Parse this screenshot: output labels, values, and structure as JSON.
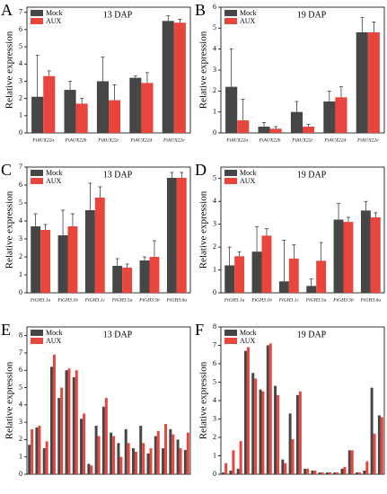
{
  "chart_data": [
    {
      "type": "bar",
      "label": "A",
      "title": "13 DAP",
      "y_label": "Relative expression",
      "categories": [
        "FtAUX22a",
        "FtAUX22b",
        "FtAUX22c",
        "FtAUX22d",
        "FtAUX22e"
      ],
      "series": [
        {
          "name": "Mock",
          "color": "#464646",
          "values": [
            2.1,
            2.5,
            3.0,
            3.2,
            6.5
          ],
          "errors": [
            2.4,
            0.5,
            1.4,
            0.1,
            0.3
          ]
        },
        {
          "name": "AUX",
          "color": "#e8453c",
          "values": [
            3.3,
            1.7,
            1.9,
            2.9,
            6.4
          ],
          "errors": [
            0.3,
            0.3,
            0.9,
            0.6,
            0.2
          ]
        }
      ],
      "ylim": [
        0,
        7.3
      ],
      "yticks": [
        0,
        1,
        2,
        3,
        4,
        5,
        6,
        7
      ]
    },
    {
      "type": "bar",
      "label": "B",
      "title": "19 DAP",
      "y_label": "Relative expression",
      "categories": [
        "FtAUX22a",
        "FtAUX22b",
        "FtAUX22c",
        "FtAUX22d",
        "FtAUX22e"
      ],
      "series": [
        {
          "name": "Mock",
          "color": "#464646",
          "values": [
            2.2,
            0.3,
            1.0,
            1.5,
            4.8
          ],
          "errors": [
            1.8,
            0.2,
            0.5,
            0.5,
            0.7
          ]
        },
        {
          "name": "AUX",
          "color": "#e8453c",
          "values": [
            0.6,
            0.2,
            0.3,
            1.7,
            4.8
          ],
          "errors": [
            1.0,
            0.1,
            0.1,
            0.5,
            0.5
          ]
        }
      ],
      "ylim": [
        0,
        6
      ],
      "yticks": [
        0,
        1,
        2,
        3,
        4,
        5,
        6
      ]
    },
    {
      "type": "bar",
      "label": "C",
      "title": "13 DAP",
      "y_label": "Relative expression",
      "categories": [
        "FtGH3.1a",
        "FtGH3.1b",
        "FtGH3.1c",
        "FtGH3.5a",
        "FtGH3.5b",
        "FtGH3.6a"
      ],
      "series": [
        {
          "name": "Mock",
          "color": "#464646",
          "values": [
            3.7,
            3.2,
            4.6,
            1.5,
            1.8,
            6.4
          ],
          "errors": [
            0.7,
            1.4,
            1.5,
            0.4,
            0.2,
            0.3
          ]
        },
        {
          "name": "AUX",
          "color": "#e8453c",
          "values": [
            3.5,
            3.7,
            5.3,
            1.4,
            2.0,
            6.4
          ],
          "errors": [
            0.3,
            0.7,
            0.6,
            0.2,
            0.9,
            0.3
          ]
        }
      ],
      "ylim": [
        0,
        7
      ],
      "yticks": [
        0,
        1,
        2,
        3,
        4,
        5,
        6,
        7
      ]
    },
    {
      "type": "bar",
      "label": "D",
      "title": "19 DAP",
      "y_label": "Relative expression",
      "categories": [
        "FtGH3.1a",
        "FtGH3.1b",
        "FtGH3.1c",
        "FtGH3.5a",
        "FtGH3.5b",
        "FtGH3.6a"
      ],
      "series": [
        {
          "name": "Mock",
          "color": "#464646",
          "values": [
            1.2,
            1.8,
            0.5,
            0.3,
            3.2,
            3.6
          ],
          "errors": [
            0.8,
            1.1,
            1.8,
            0.3,
            0.7,
            0.4
          ]
        },
        {
          "name": "AUX",
          "color": "#e8453c",
          "values": [
            1.6,
            2.5,
            1.5,
            1.4,
            3.1,
            3.3
          ],
          "errors": [
            0.2,
            0.3,
            0.6,
            0.8,
            0.2,
            0.2
          ]
        }
      ],
      "ylim": [
        0,
        5.5
      ],
      "yticks": [
        0,
        1,
        2,
        3,
        4,
        5
      ]
    },
    {
      "type": "bar",
      "label": "E",
      "title": "13 DAP",
      "y_label": "Relative expression",
      "categories": [
        null,
        null,
        null,
        null,
        null,
        null,
        null,
        null,
        null,
        null,
        null,
        null,
        null,
        null,
        null,
        null,
        null,
        null,
        null,
        null,
        null,
        null
      ],
      "series": [
        {
          "name": "Mock",
          "color": "#464646",
          "values": [
            1.7,
            2.7,
            1.5,
            6.2,
            4.4,
            6.0,
            5.6,
            3.2,
            0.6,
            2.8,
            3.9,
            2.4,
            1.8,
            2.6,
            1.5,
            2.8,
            1.2,
            2.2,
            1.5,
            2.6,
            2.0,
            1.4
          ]
        },
        {
          "name": "AUX",
          "color": "#e8453c",
          "values": [
            2.6,
            2.8,
            1.9,
            6.9,
            5.0,
            6.1,
            6.0,
            3.5,
            0.5,
            2.2,
            4.4,
            2.2,
            1.0,
            1.8,
            1.3,
            1.8,
            1.5,
            2.5,
            2.9,
            2.3,
            1.5,
            2.4
          ]
        }
      ],
      "ylim": [
        0,
        8.5
      ],
      "yticks": [
        0,
        1,
        2,
        3,
        4,
        5,
        6,
        7,
        8
      ]
    },
    {
      "type": "bar",
      "label": "F",
      "title": "19 DAP",
      "y_label": "Relative expression",
      "categories": [
        null,
        null,
        null,
        null,
        null,
        null,
        null,
        null,
        null,
        null,
        null,
        null,
        null,
        null,
        null,
        null,
        null,
        null,
        null,
        null,
        null,
        null
      ],
      "series": [
        {
          "name": "Mock",
          "color": "#464646",
          "values": [
            0.1,
            0.2,
            0.3,
            6.7,
            5.5,
            4.6,
            7.0,
            4.8,
            0.8,
            3.3,
            4.3,
            0.3,
            0.2,
            0.1,
            0.1,
            0.1,
            0.3,
            1.3,
            0.1,
            0.2,
            4.7,
            3.2
          ]
        },
        {
          "name": "AUX",
          "color": "#e8453c",
          "values": [
            0.6,
            1.3,
            1.8,
            6.9,
            5.2,
            4.5,
            7.1,
            4.3,
            0.6,
            1.9,
            4.5,
            0.3,
            0.2,
            0.1,
            0.1,
            0.1,
            0.4,
            1.3,
            0.1,
            0.7,
            2.2,
            3.1
          ]
        }
      ],
      "ylim": [
        0,
        8
      ],
      "yticks": [
        0,
        1,
        2,
        3,
        4,
        5,
        6,
        7,
        8
      ]
    }
  ]
}
